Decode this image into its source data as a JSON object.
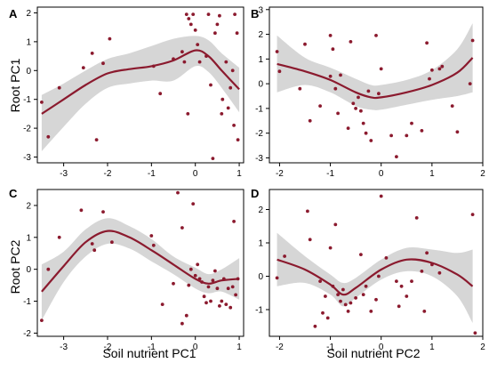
{
  "figure": {
    "colors": {
      "line": "#8B1A2E",
      "point": "#8B1A2E",
      "band": "#D6D6D6",
      "axis": "#000000"
    },
    "ylabel_top": "Root PC1",
    "ylabel_bottom": "Root PC2",
    "xlabel_left": "Soil nutrient PC1",
    "xlabel_right": "Soil nutrient PC2"
  },
  "chart_data": [
    {
      "panel": "A",
      "type": "scatter",
      "xlabel": "",
      "ylabel": "Root PC1",
      "xlim": [
        -3.6,
        1.1
      ],
      "ylim": [
        -3.2,
        2.2
      ],
      "xticks": [
        -3,
        -2,
        -1,
        0,
        1
      ],
      "yticks": [
        -3,
        -2,
        -1,
        0,
        1,
        2
      ],
      "points": [
        [
          -3.5,
          -1.1
        ],
        [
          -3.35,
          -2.3
        ],
        [
          -3.1,
          -0.6
        ],
        [
          -2.55,
          0.1
        ],
        [
          -2.35,
          0.6
        ],
        [
          -2.25,
          -2.4
        ],
        [
          -2.1,
          0.25
        ],
        [
          -1.95,
          1.1
        ],
        [
          -0.95,
          0.15
        ],
        [
          -0.8,
          -0.8
        ],
        [
          -0.5,
          0.4
        ],
        [
          -0.3,
          0.65
        ],
        [
          -0.25,
          0.3
        ],
        [
          -0.2,
          1.95
        ],
        [
          -0.17,
          -1.5
        ],
        [
          -0.15,
          1.8
        ],
        [
          -0.1,
          1.6
        ],
        [
          -0.05,
          1.95
        ],
        [
          0.0,
          1.4
        ],
        [
          0.05,
          0.9
        ],
        [
          0.1,
          0.3
        ],
        [
          0.25,
          0.5
        ],
        [
          0.3,
          1.95
        ],
        [
          0.35,
          -0.5
        ],
        [
          0.4,
          -3.05
        ],
        [
          0.45,
          1.3
        ],
        [
          0.5,
          1.6
        ],
        [
          0.55,
          1.9
        ],
        [
          0.6,
          -1.5
        ],
        [
          0.62,
          -1.0
        ],
        [
          0.7,
          0.3
        ],
        [
          0.75,
          -1.3
        ],
        [
          0.8,
          -0.6
        ],
        [
          0.85,
          0.0
        ],
        [
          0.88,
          -1.9
        ],
        [
          0.9,
          1.95
        ],
        [
          0.95,
          1.3
        ],
        [
          0.97,
          -2.4
        ]
      ],
      "fit": [
        [
          -3.5,
          -1.5
        ],
        [
          -3.0,
          -1.0
        ],
        [
          -2.5,
          -0.5
        ],
        [
          -2.0,
          -0.1
        ],
        [
          -1.5,
          0.05
        ],
        [
          -1.0,
          0.15
        ],
        [
          -0.5,
          0.35
        ],
        [
          0.0,
          0.7
        ],
        [
          0.3,
          0.5
        ],
        [
          0.6,
          0.0
        ],
        [
          1.0,
          -0.65
        ]
      ],
      "band": {
        "upper": [
          [
            -3.5,
            -0.85
          ],
          [
            -3.0,
            -0.45
          ],
          [
            -2.5,
            0.0
          ],
          [
            -2.0,
            0.4
          ],
          [
            -1.5,
            0.6
          ],
          [
            -1.0,
            0.85
          ],
          [
            -0.5,
            1.1
          ],
          [
            0.0,
            1.2
          ],
          [
            0.3,
            1.05
          ],
          [
            0.6,
            0.6
          ],
          [
            1.0,
            0.1
          ]
        ],
        "lower": [
          [
            -3.5,
            -2.8
          ],
          [
            -3.0,
            -1.95
          ],
          [
            -2.5,
            -1.15
          ],
          [
            -2.0,
            -0.6
          ],
          [
            -1.5,
            -0.45
          ],
          [
            -1.0,
            -0.35
          ],
          [
            -0.5,
            -0.35
          ],
          [
            0.0,
            0.15
          ],
          [
            0.3,
            -0.05
          ],
          [
            0.6,
            -0.6
          ],
          [
            1.0,
            -1.45
          ]
        ]
      }
    },
    {
      "panel": "B",
      "type": "scatter",
      "xlabel": "",
      "ylabel": "",
      "xlim": [
        -2.2,
        2.0
      ],
      "ylim": [
        -3.2,
        3.1
      ],
      "xticks": [
        -2,
        -1,
        0,
        1,
        2
      ],
      "yticks": [
        -3,
        -2,
        -1,
        0,
        1,
        2,
        3
      ],
      "points": [
        [
          -2.05,
          1.3
        ],
        [
          -2.0,
          0.5
        ],
        [
          -1.6,
          -0.2
        ],
        [
          -1.5,
          1.6
        ],
        [
          -1.4,
          -1.5
        ],
        [
          -1.2,
          -0.9
        ],
        [
          -1.0,
          1.95
        ],
        [
          -1.0,
          0.3
        ],
        [
          -0.95,
          1.4
        ],
        [
          -0.9,
          -0.2
        ],
        [
          -0.85,
          -1.2
        ],
        [
          -0.8,
          0.35
        ],
        [
          -0.65,
          -1.8
        ],
        [
          -0.6,
          1.7
        ],
        [
          -0.55,
          -0.8
        ],
        [
          -0.5,
          -1.0
        ],
        [
          -0.45,
          -0.55
        ],
        [
          -0.4,
          -1.1
        ],
        [
          -0.35,
          -1.6
        ],
        [
          -0.3,
          -2.0
        ],
        [
          -0.25,
          -0.3
        ],
        [
          -0.2,
          -2.3
        ],
        [
          -0.1,
          1.95
        ],
        [
          -0.05,
          -0.4
        ],
        [
          0.0,
          0.6
        ],
        [
          0.2,
          -2.1
        ],
        [
          0.3,
          -2.95
        ],
        [
          0.5,
          -2.1
        ],
        [
          0.6,
          -1.6
        ],
        [
          0.8,
          -1.9
        ],
        [
          0.9,
          1.65
        ],
        [
          0.95,
          0.2
        ],
        [
          1.0,
          0.55
        ],
        [
          1.15,
          0.6
        ],
        [
          1.2,
          0.7
        ],
        [
          1.4,
          -0.9
        ],
        [
          1.5,
          -1.95
        ],
        [
          1.75,
          0.0
        ],
        [
          1.8,
          1.75
        ]
      ],
      "fit": [
        [
          -2.05,
          0.8
        ],
        [
          -1.5,
          0.5
        ],
        [
          -1.0,
          0.15
        ],
        [
          -0.5,
          -0.35
        ],
        [
          -0.2,
          -0.55
        ],
        [
          0.0,
          -0.55
        ],
        [
          0.5,
          -0.35
        ],
        [
          1.0,
          -0.05
        ],
        [
          1.5,
          0.45
        ],
        [
          1.8,
          1.05
        ]
      ],
      "band": {
        "upper": [
          [
            -2.05,
            1.95
          ],
          [
            -1.5,
            1.05
          ],
          [
            -1.0,
            0.65
          ],
          [
            -0.5,
            0.2
          ],
          [
            -0.2,
            -0.05
          ],
          [
            0.0,
            -0.05
          ],
          [
            0.5,
            0.15
          ],
          [
            1.0,
            0.55
          ],
          [
            1.5,
            1.4
          ],
          [
            1.8,
            2.45
          ]
        ],
        "lower": [
          [
            -2.05,
            -0.35
          ],
          [
            -1.5,
            -0.05
          ],
          [
            -1.0,
            -0.35
          ],
          [
            -0.5,
            -0.9
          ],
          [
            -0.2,
            -1.05
          ],
          [
            0.0,
            -1.05
          ],
          [
            0.5,
            -0.85
          ],
          [
            1.0,
            -0.65
          ],
          [
            1.5,
            -0.5
          ],
          [
            1.8,
            -0.35
          ]
        ]
      }
    },
    {
      "panel": "C",
      "type": "scatter",
      "xlabel": "Soil nutrient PC1",
      "ylabel": "Root PC2",
      "xlim": [
        -3.6,
        1.1
      ],
      "ylim": [
        -2.1,
        2.5
      ],
      "xticks": [
        -3,
        -2,
        -1,
        0,
        1
      ],
      "yticks": [
        -2,
        -1,
        0,
        1,
        2
      ],
      "points": [
        [
          -3.5,
          -1.6
        ],
        [
          -3.35,
          0.0
        ],
        [
          -3.1,
          1.0
        ],
        [
          -2.6,
          1.85
        ],
        [
          -2.35,
          0.8
        ],
        [
          -2.3,
          0.6
        ],
        [
          -2.1,
          1.8
        ],
        [
          -1.9,
          0.85
        ],
        [
          -1.0,
          1.05
        ],
        [
          -0.95,
          0.75
        ],
        [
          -0.75,
          -1.1
        ],
        [
          -0.5,
          -0.45
        ],
        [
          -0.4,
          2.4
        ],
        [
          -0.3,
          1.3
        ],
        [
          -0.3,
          -1.7
        ],
        [
          -0.2,
          -1.45
        ],
        [
          -0.15,
          -0.5
        ],
        [
          -0.1,
          0.0
        ],
        [
          -0.05,
          2.05
        ],
        [
          0.0,
          -0.2
        ],
        [
          0.05,
          0.15
        ],
        [
          0.1,
          -0.3
        ],
        [
          0.15,
          -0.4
        ],
        [
          0.2,
          -0.85
        ],
        [
          0.25,
          -1.05
        ],
        [
          0.3,
          -0.55
        ],
        [
          0.35,
          -1.0
        ],
        [
          0.4,
          -0.35
        ],
        [
          0.45,
          -0.05
        ],
        [
          0.5,
          -0.6
        ],
        [
          0.55,
          -1.15
        ],
        [
          0.6,
          -1.0
        ],
        [
          0.65,
          -0.3
        ],
        [
          0.7,
          -1.1
        ],
        [
          0.75,
          -0.6
        ],
        [
          0.8,
          -1.2
        ],
        [
          0.85,
          -0.55
        ],
        [
          0.88,
          1.5
        ],
        [
          0.92,
          -0.8
        ],
        [
          0.97,
          -0.3
        ]
      ],
      "fit": [
        [
          -3.5,
          -0.7
        ],
        [
          -3.0,
          0.1
        ],
        [
          -2.5,
          0.85
        ],
        [
          -2.0,
          1.2
        ],
        [
          -1.5,
          1.0
        ],
        [
          -1.0,
          0.6
        ],
        [
          -0.5,
          0.15
        ],
        [
          0.0,
          -0.3
        ],
        [
          0.3,
          -0.45
        ],
        [
          0.6,
          -0.35
        ],
        [
          1.0,
          -0.3
        ]
      ],
      "band": {
        "upper": [
          [
            -3.5,
            0.15
          ],
          [
            -3.0,
            0.55
          ],
          [
            -2.5,
            1.25
          ],
          [
            -2.0,
            1.6
          ],
          [
            -1.5,
            1.35
          ],
          [
            -1.0,
            0.95
          ],
          [
            -0.5,
            0.4
          ],
          [
            0.0,
            0.05
          ],
          [
            0.3,
            -0.15
          ],
          [
            0.6,
            0.0
          ],
          [
            1.0,
            0.35
          ]
        ],
        "lower": [
          [
            -3.5,
            -1.6
          ],
          [
            -3.0,
            -0.4
          ],
          [
            -2.5,
            0.4
          ],
          [
            -2.0,
            0.8
          ],
          [
            -1.5,
            0.65
          ],
          [
            -1.0,
            0.25
          ],
          [
            -0.5,
            -0.15
          ],
          [
            0.0,
            -0.6
          ],
          [
            0.3,
            -0.75
          ],
          [
            0.6,
            -0.7
          ],
          [
            1.0,
            -0.95
          ]
        ]
      }
    },
    {
      "panel": "D",
      "type": "scatter",
      "xlabel": "Soil nutrient PC2",
      "ylabel": "",
      "xlim": [
        -2.2,
        2.0
      ],
      "ylim": [
        -1.8,
        2.6
      ],
      "xticks": [
        -2,
        -1,
        0,
        1,
        2
      ],
      "yticks": [
        -1,
        0,
        1,
        2
      ],
      "points": [
        [
          -2.05,
          -0.05
        ],
        [
          -1.9,
          0.6
        ],
        [
          -1.45,
          1.95
        ],
        [
          -1.4,
          1.1
        ],
        [
          -1.3,
          -1.5
        ],
        [
          -1.2,
          -0.15
        ],
        [
          -1.15,
          -1.1
        ],
        [
          -1.1,
          -0.6
        ],
        [
          -1.05,
          -1.25
        ],
        [
          -1.0,
          0.85
        ],
        [
          -0.95,
          -0.3
        ],
        [
          -0.9,
          1.55
        ],
        [
          -0.85,
          -0.55
        ],
        [
          -0.8,
          -0.75
        ],
        [
          -0.75,
          -0.4
        ],
        [
          -0.7,
          -0.85
        ],
        [
          -0.65,
          -1.05
        ],
        [
          -0.6,
          -0.8
        ],
        [
          -0.5,
          -0.65
        ],
        [
          -0.4,
          0.65
        ],
        [
          -0.35,
          -0.55
        ],
        [
          -0.3,
          -0.3
        ],
        [
          -0.2,
          -1.05
        ],
        [
          -0.1,
          -0.7
        ],
        [
          -0.05,
          0.0
        ],
        [
          0.0,
          2.4
        ],
        [
          0.1,
          0.55
        ],
        [
          0.3,
          -0.15
        ],
        [
          0.35,
          -0.9
        ],
        [
          0.4,
          -0.3
        ],
        [
          0.5,
          -0.6
        ],
        [
          0.6,
          -0.15
        ],
        [
          0.7,
          1.75
        ],
        [
          0.8,
          0.15
        ],
        [
          0.85,
          -1.05
        ],
        [
          0.9,
          0.7
        ],
        [
          1.0,
          0.35
        ],
        [
          1.15,
          0.1
        ],
        [
          1.8,
          1.85
        ],
        [
          1.85,
          -1.7
        ]
      ],
      "fit": [
        [
          -2.05,
          0.5
        ],
        [
          -1.5,
          0.2
        ],
        [
          -1.0,
          -0.25
        ],
        [
          -0.75,
          -0.55
        ],
        [
          -0.5,
          -0.35
        ],
        [
          0.0,
          0.2
        ],
        [
          0.5,
          0.5
        ],
        [
          1.0,
          0.4
        ],
        [
          1.5,
          0.05
        ],
        [
          1.8,
          -0.3
        ]
      ],
      "band": {
        "upper": [
          [
            -2.05,
            1.3
          ],
          [
            -1.5,
            0.6
          ],
          [
            -1.0,
            0.05
          ],
          [
            -0.75,
            -0.2
          ],
          [
            -0.5,
            -0.05
          ],
          [
            0.0,
            0.5
          ],
          [
            0.5,
            0.85
          ],
          [
            1.0,
            0.8
          ],
          [
            1.5,
            0.7
          ],
          [
            1.8,
            0.8
          ]
        ],
        "lower": [
          [
            -2.05,
            -0.3
          ],
          [
            -1.5,
            -0.2
          ],
          [
            -1.0,
            -0.55
          ],
          [
            -0.75,
            -0.9
          ],
          [
            -0.5,
            -0.65
          ],
          [
            0.0,
            -0.1
          ],
          [
            0.5,
            0.15
          ],
          [
            1.0,
            0.0
          ],
          [
            1.5,
            -0.6
          ],
          [
            1.8,
            -1.4
          ]
        ]
      }
    }
  ]
}
